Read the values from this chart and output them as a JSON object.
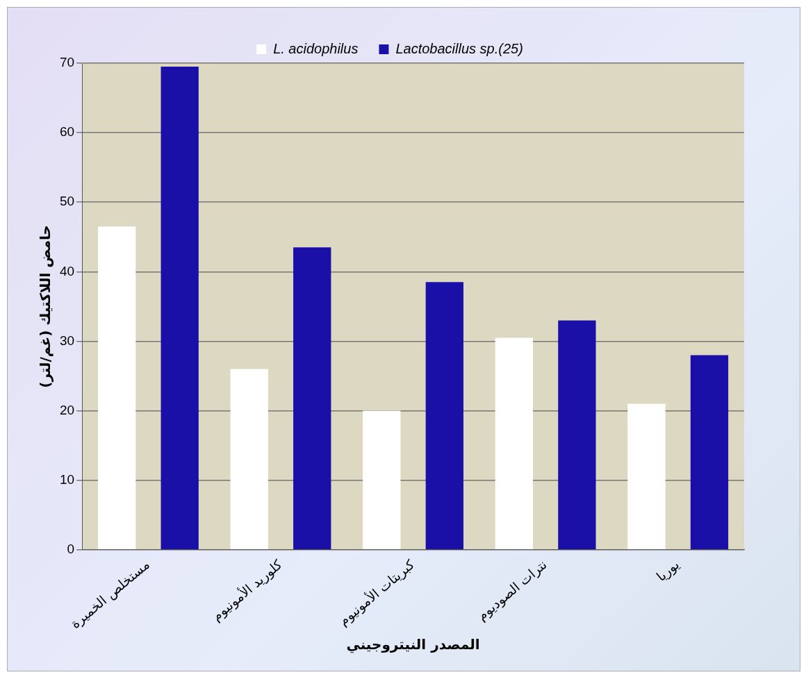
{
  "chart_data": {
    "type": "bar",
    "xlabel": "المصدر النيتروجيني",
    "ylabel": "حامض اللاكتيك (غم/لتر)",
    "categories": [
      "مستخلص الخميرة",
      "كلوريد الأمونيوم",
      "كبريتات الأمونيوم",
      "نترات الصوديوم",
      "يوريا"
    ],
    "series": [
      {
        "name": "L. acidophilus",
        "color": "#ffffff",
        "values": [
          46.5,
          26,
          20,
          30.5,
          21
        ]
      },
      {
        "name": "Lactobacillus sp.(25)",
        "color": "#1a10a8",
        "values": [
          69.5,
          43.5,
          38.5,
          33,
          28
        ]
      }
    ],
    "ylim": [
      0,
      70
    ],
    "yticks": [
      0,
      10,
      20,
      30,
      40,
      50,
      60,
      70
    ],
    "grid": "y",
    "legend": "top"
  }
}
